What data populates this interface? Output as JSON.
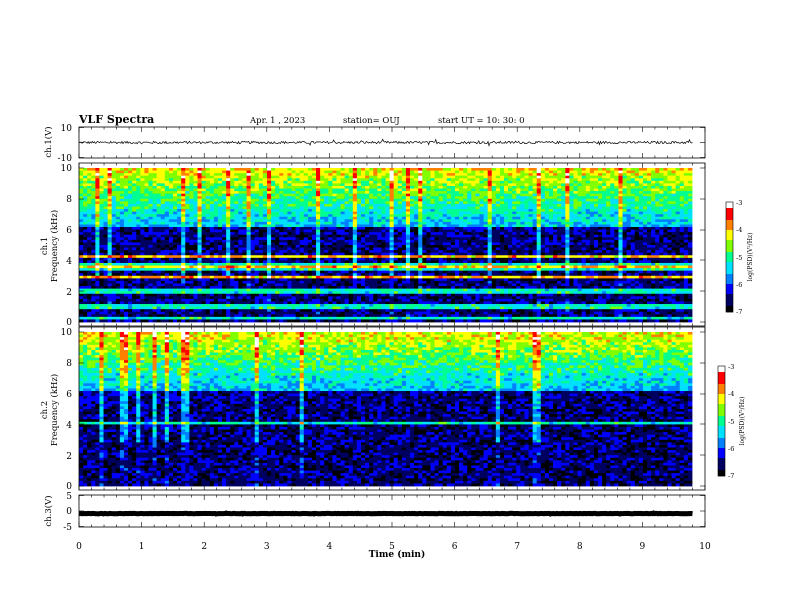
{
  "header": {
    "title": "VLF Spectra",
    "date": "Apr. 1 , 2023",
    "station": "station= OUJ",
    "start": "start  UT =  10: 30: 0"
  },
  "chart_data": [
    {
      "type": "line",
      "name": "ch1-waveform",
      "ylabel": "ch.1(V)",
      "ylim": [
        -10,
        10
      ],
      "yticks": [
        "10",
        "-10"
      ],
      "baseline_value": 0,
      "noise_amplitude": 0.8,
      "xlim": [
        0,
        10
      ]
    },
    {
      "type": "heatmap",
      "name": "ch1-spectrogram",
      "ylabel_line1": "ch.1",
      "ylabel_line2": "Frequency  (kHz)",
      "ylim": [
        0,
        10
      ],
      "yticks": [
        "0",
        "2",
        "4",
        "6",
        "8",
        "10"
      ],
      "xlim": [
        0,
        9.8
      ],
      "colorbar": {
        "label": "log(PSD)(V²/Hz)",
        "range": [
          -7,
          -3
        ],
        "ticks": [
          "-3",
          "-4",
          "-5",
          "-6",
          "-7"
        ]
      }
    },
    {
      "type": "heatmap",
      "name": "ch2-spectrogram",
      "ylabel_line1": "ch.2",
      "ylabel_line2": "Frequency  (kHz)",
      "ylim": [
        0,
        10
      ],
      "yticks": [
        "0",
        "2",
        "4",
        "6",
        "8",
        "10"
      ],
      "xlim": [
        0,
        9.8
      ],
      "colorbar": {
        "label": "log(PSD)(V²/Hz)",
        "range": [
          -7,
          -3
        ],
        "ticks": [
          "-3",
          "-4",
          "-5",
          "-6",
          "-7"
        ]
      }
    },
    {
      "type": "line",
      "name": "ch3-waveform",
      "ylabel": "ch.3(V)",
      "ylim": [
        -5,
        5
      ],
      "yticks": [
        "5",
        "0",
        "-5"
      ],
      "baseline_value": -0.8,
      "noise_amplitude": 0.05,
      "xlim": [
        0,
        10
      ],
      "xlabel": "Time  (min)",
      "xticks": [
        "0",
        "1",
        "2",
        "3",
        "4",
        "5",
        "6",
        "7",
        "8",
        "9",
        "10"
      ]
    }
  ],
  "colors": {
    "colormap": [
      "#000000",
      "#000060",
      "#0000ff",
      "#0080ff",
      "#00e0ff",
      "#00ff90",
      "#80ff00",
      "#ffff00",
      "#ff8000",
      "#ff0000",
      "#ffffff"
    ],
    "trace": "#000000"
  }
}
